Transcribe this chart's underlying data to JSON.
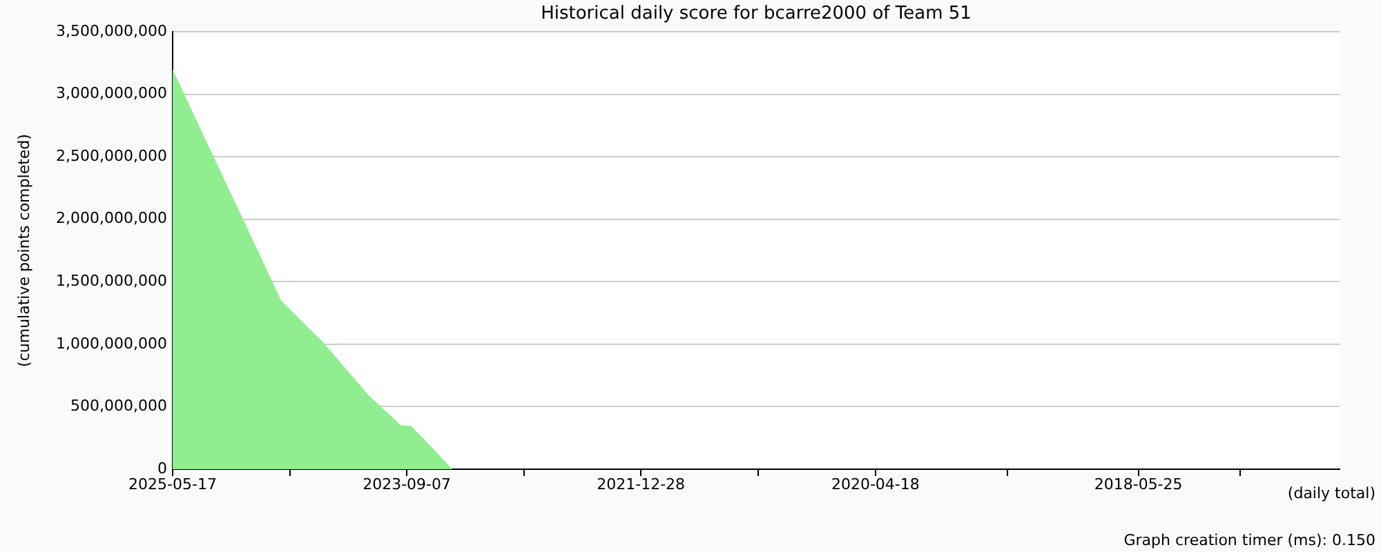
{
  "chart_data": {
    "type": "area",
    "title": "Historical daily score for bcarre2000 of Team 51",
    "xlabel": "(daily total)",
    "ylabel": "(cumulative points completed)",
    "annotations": [
      "Graph creation timer (ms): 0.150"
    ],
    "x": [
      "2025-05-17",
      "2025-02-15",
      "2024-11-09",
      "2024-08-16",
      "2024-08-04",
      "2024-04-16",
      "2023-12-16",
      "2023-09-22",
      "2023-08-26",
      "2023-06-28",
      "2023-05-10"
    ],
    "series": [
      {
        "color": "#90ee90",
        "values": [
          3200000000,
          2610000000,
          1980000000,
          1430000000,
          1350000000,
          1020000000,
          590000000,
          350000000,
          345000000,
          160000000,
          0
        ]
      }
    ],
    "xlim": [
      "2025-05-17",
      "2016-12-10"
    ],
    "xticks": [
      {
        "value": "2025-05-17",
        "label": "2025-05-17"
      },
      {
        "value": "2024-07-12",
        "label": null
      },
      {
        "value": "2023-09-07",
        "label": "2023-09-07"
      },
      {
        "value": "2022-11-02",
        "label": null
      },
      {
        "value": "2021-12-28",
        "label": "2021-12-28"
      },
      {
        "value": "2021-02-21",
        "label": null
      },
      {
        "value": "2020-04-18",
        "label": "2020-04-18"
      },
      {
        "value": "2019-05-06",
        "label": null
      },
      {
        "value": "2018-05-25",
        "label": "2018-05-25"
      },
      {
        "value": "2017-08-30",
        "label": null
      }
    ],
    "ylim": [
      0,
      3500000000
    ],
    "yticks": [
      0,
      {
        "value": 500000000,
        "label": "500,000,000"
      },
      {
        "value": 1000000000,
        "label": "1,000,000,000"
      },
      {
        "value": 1500000000,
        "label": "1,500,000,000"
      },
      {
        "value": 2000000000,
        "label": "2,000,000,000"
      },
      {
        "value": 2500000000,
        "label": "2,500,000,000"
      },
      {
        "value": 3000000000,
        "label": "3,000,000,000"
      },
      {
        "value": 3500000000,
        "label": "3,500,000,000"
      }
    ],
    "grid": "y"
  }
}
